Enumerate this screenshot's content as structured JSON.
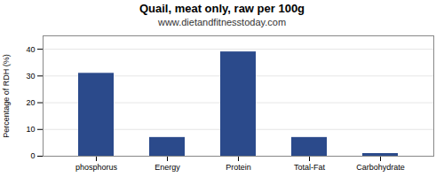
{
  "chart_data": {
    "type": "bar",
    "title": "Quail, meat only, raw per 100g",
    "subtitle": "www.dietandfitnesstoday.com",
    "categories": [
      "phosphorus",
      "Energy",
      "Protein",
      "Total-Fat",
      "Carbohydrate"
    ],
    "values": [
      31,
      7,
      39,
      7,
      1
    ],
    "color": "#2b4a8b",
    "ylabel": "Percentage of RDH (%)",
    "ylim": [
      0,
      45
    ],
    "yticks": [
      0,
      10,
      20,
      30,
      40
    ],
    "grid": true
  }
}
